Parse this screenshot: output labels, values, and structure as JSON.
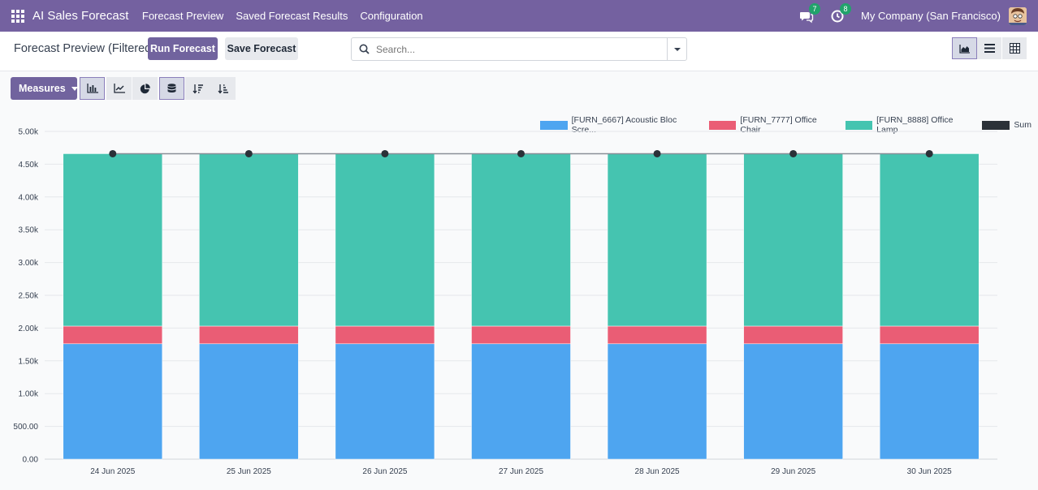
{
  "topbar": {
    "app_title": "AI Sales Forecast",
    "menu": [
      "Forecast Preview",
      "Saved Forecast Results",
      "Configuration"
    ],
    "messages_count": "7",
    "activities_count": "8",
    "company": "My Company (San Francisco)"
  },
  "control_panel": {
    "breadcrumb": "Forecast Preview (Filtered)",
    "run_label": "Run Forecast",
    "save_label": "Save Forecast",
    "search_placeholder": "Search..."
  },
  "toolbar": {
    "measures_label": "Measures"
  },
  "colors": {
    "brand": "#714b67",
    "navbar": "#7461a0",
    "blue": "#4ea5f0",
    "red": "#ea5d75",
    "green": "#45c4b0",
    "sum": "#2b3138"
  },
  "chart_data": {
    "type": "bar",
    "stacked": true,
    "categories": [
      "24 Jun 2025",
      "25 Jun 2025",
      "26 Jun 2025",
      "27 Jun 2025",
      "28 Jun 2025",
      "29 Jun 2025",
      "30 Jun 2025"
    ],
    "series": [
      {
        "name": "[FURN_6667] Acoustic Bloc Scre...",
        "color": "#4ea5f0",
        "values": [
          1760,
          1760,
          1760,
          1760,
          1760,
          1760,
          1760
        ]
      },
      {
        "name": "[FURN_7777] Office Chair",
        "color": "#ea5d75",
        "values": [
          270,
          270,
          270,
          270,
          270,
          270,
          270
        ]
      },
      {
        "name": "[FURN_8888] Office Lamp",
        "color": "#45c4b0",
        "values": [
          2630,
          2630,
          2630,
          2630,
          2630,
          2630,
          2630
        ]
      }
    ],
    "sum": {
      "name": "Sum",
      "color": "#2b3138",
      "values": [
        4660,
        4660,
        4660,
        4660,
        4660,
        4660,
        4660
      ]
    },
    "ylim": [
      0,
      5000
    ],
    "yticks": [
      "0.00",
      "500.00",
      "1.00k",
      "1.50k",
      "2.00k",
      "2.50k",
      "3.00k",
      "3.50k",
      "4.00k",
      "4.50k",
      "5.00k"
    ],
    "grid": true,
    "legend": "top-right"
  }
}
